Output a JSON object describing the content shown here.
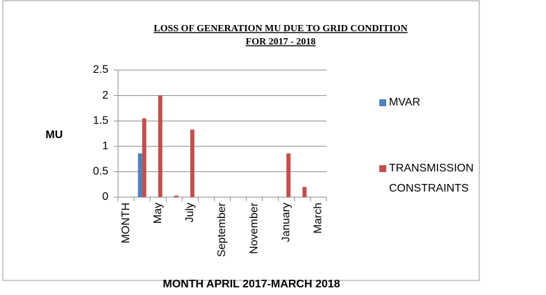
{
  "chart_data": {
    "type": "bar",
    "title": "LOSS OF GENERATION  MU DUE   TO GRID CONDITION",
    "subtitle": "FOR 2017 - 2018",
    "y_label": "MU",
    "x_label": "MONTH APRIL 2017-MARCH 2018",
    "categories": [
      "MONTH",
      null,
      "May",
      null,
      "July",
      null,
      "September",
      null,
      "November",
      null,
      "January",
      null,
      "March"
    ],
    "series": [
      {
        "name": "MVAR",
        "color": "#4f81bd",
        "values": [
          null,
          0.86,
          0,
          0,
          0,
          0,
          0,
          0,
          0,
          0,
          0,
          0,
          0
        ]
      },
      {
        "name": "TRANSMISSION CONSTRAINTS",
        "color": "#c0504d",
        "values": [
          null,
          1.55,
          2.0,
          0.03,
          1.33,
          0,
          0,
          0,
          0,
          0,
          0.86,
          0.2,
          0
        ]
      }
    ],
    "ylim": [
      0,
      2.5
    ],
    "yticks": [
      0,
      0.5,
      1,
      1.5,
      2,
      2.5
    ],
    "grid": true,
    "legend": "right"
  }
}
